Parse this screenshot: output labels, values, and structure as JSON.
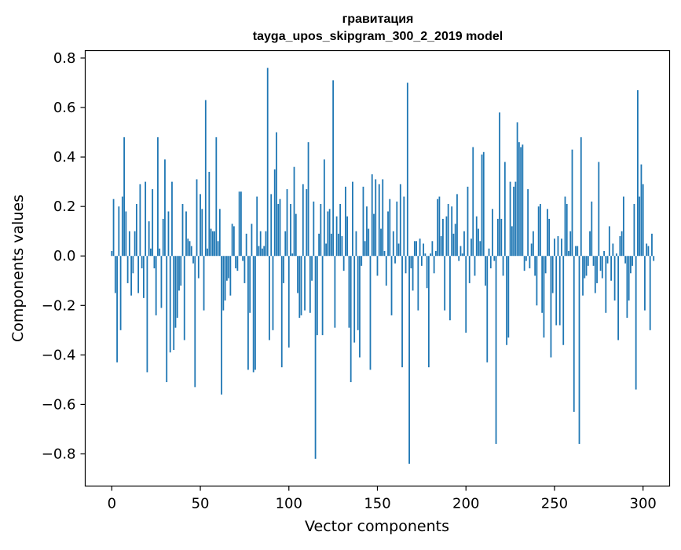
{
  "chart_data": {
    "type": "bar",
    "title_line1": "гравитация",
    "title_line2": "tayga_upos_skipgram_300_2_2019 model",
    "xlabel": "Vector components",
    "ylabel": "Components values",
    "xlim": [
      -15,
      315
    ],
    "ylim": [
      -0.93,
      0.83
    ],
    "xticks": [
      0,
      50,
      100,
      150,
      200,
      250,
      300
    ],
    "yticks": [
      -0.8,
      -0.6,
      -0.4,
      -0.2,
      0.0,
      0.2,
      0.4,
      0.6,
      0.8
    ],
    "ytick_labels": [
      "−0.8",
      "−0.6",
      "−0.4",
      "−0.2",
      "0.0",
      "0.2",
      "0.4",
      "0.6",
      "0.8"
    ],
    "bar_color": "#1f77b4",
    "grid": false,
    "values": [
      0.02,
      0.23,
      -0.15,
      -0.43,
      0.2,
      -0.3,
      0.24,
      0.48,
      0.18,
      -0.11,
      0.1,
      -0.16,
      -0.07,
      0.1,
      0.21,
      -0.15,
      0.29,
      -0.05,
      -0.17,
      0.3,
      -0.47,
      0.14,
      0.03,
      0.27,
      -0.05,
      -0.24,
      0.48,
      0.03,
      -0.21,
      0.15,
      0.39,
      -0.51,
      0.18,
      -0.39,
      0.3,
      -0.38,
      -0.29,
      -0.25,
      -0.14,
      -0.12,
      0.21,
      -0.34,
      0.18,
      0.07,
      0.06,
      0.04,
      -0.03,
      -0.53,
      0.31,
      -0.09,
      0.25,
      0.19,
      -0.22,
      0.63,
      0.03,
      0.34,
      0.11,
      0.1,
      0.1,
      0.48,
      0.06,
      0.19,
      -0.56,
      -0.22,
      -0.18,
      -0.1,
      -0.09,
      -0.16,
      0.13,
      0.12,
      -0.05,
      -0.06,
      0.26,
      0.26,
      -0.02,
      -0.11,
      0.09,
      -0.46,
      -0.23,
      0.13,
      -0.47,
      -0.46,
      0.24,
      0.04,
      0.1,
      0.03,
      0.04,
      0.1,
      0.76,
      -0.34,
      0.25,
      -0.3,
      0.35,
      0.5,
      0.21,
      0.23,
      -0.45,
      -0.11,
      0.1,
      0.27,
      -0.37,
      0.21,
      0.01,
      0.36,
      0.17,
      -0.15,
      -0.25,
      -0.24,
      0.29,
      -0.22,
      0.27,
      0.46,
      -0.23,
      -0.1,
      0.22,
      -0.82,
      -0.32,
      0.09,
      0.21,
      -0.32,
      0.39,
      0.05,
      0.18,
      0.19,
      0.09,
      0.71,
      -0.29,
      0.16,
      0.09,
      0.21,
      0.08,
      -0.06,
      0.28,
      0.16,
      -0.29,
      -0.51,
      0.3,
      -0.35,
      0.1,
      -0.3,
      -0.41,
      -0.04,
      0.28,
      0.06,
      0.2,
      0.11,
      -0.46,
      0.33,
      0.17,
      0.31,
      -0.08,
      0.29,
      0.11,
      0.31,
      0.02,
      -0.12,
      0.18,
      0.23,
      -0.24,
      0.1,
      -0.03,
      0.22,
      0.05,
      0.29,
      -0.45,
      0.24,
      -0.07,
      0.7,
      -0.84,
      -0.05,
      -0.14,
      0.06,
      0.06,
      -0.22,
      0.07,
      -0.04,
      0.05,
      0.01,
      -0.13,
      -0.45,
      0.01,
      0.06,
      -0.07,
      0.02,
      0.23,
      0.24,
      0.08,
      0.15,
      -0.22,
      0.16,
      0.21,
      -0.26,
      0.2,
      0.09,
      0.13,
      0.25,
      -0.02,
      0.04,
      0.01,
      0.1,
      -0.31,
      0.28,
      -0.11,
      0.07,
      0.44,
      -0.08,
      0.16,
      0.11,
      0.06,
      0.41,
      0.42,
      -0.12,
      -0.43,
      0.03,
      -0.05,
      0.19,
      -0.02,
      -0.76,
      0.15,
      0.58,
      0.15,
      -0.08,
      0.38,
      -0.36,
      -0.33,
      0.3,
      0.12,
      0.28,
      0.3,
      0.54,
      0.46,
      0.44,
      0.45,
      -0.06,
      -0.02,
      0.27,
      -0.05,
      0.05,
      0.1,
      -0.08,
      -0.2,
      0.2,
      0.21,
      -0.23,
      -0.33,
      -0.07,
      0.19,
      0.15,
      -0.41,
      -0.15,
      0.07,
      -0.28,
      0.08,
      -0.28,
      0.07,
      -0.36,
      0.24,
      0.21,
      0.02,
      0.1,
      0.43,
      -0.63,
      0.04,
      0.04,
      -0.76,
      0.48,
      -0.16,
      -0.09,
      -0.08,
      -0.04,
      0.1,
      0.22,
      -0.04,
      -0.15,
      -0.11,
      0.38,
      -0.06,
      -0.09,
      0.02,
      -0.23,
      -0.03,
      0.12,
      -0.1,
      0.05,
      -0.18,
      0.01,
      -0.34,
      0.08,
      0.1,
      0.24,
      -0.03,
      -0.25,
      -0.18,
      -0.07,
      -0.04,
      0.21,
      -0.54,
      0.67,
      0.24,
      0.37,
      0.29,
      -0.22,
      0.05,
      0.04,
      -0.3,
      0.09,
      -0.02
    ]
  }
}
